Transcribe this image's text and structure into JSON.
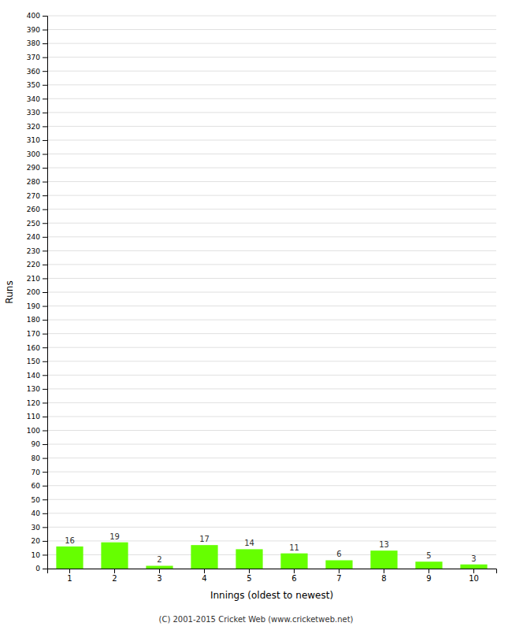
{
  "chart_data": {
    "type": "bar",
    "categories": [
      "1",
      "2",
      "3",
      "4",
      "5",
      "6",
      "7",
      "8",
      "9",
      "10"
    ],
    "values": [
      16,
      19,
      2,
      17,
      14,
      11,
      6,
      13,
      5,
      3
    ],
    "color": "#66ff00",
    "xlabel": "Innings (oldest to newest)",
    "ylabel": "Runs",
    "annotations": [
      "(C) 2001-2015 Cricket Web (www.cricketweb.net)"
    ],
    "ylim": [
      0,
      400
    ],
    "yticks": [
      0,
      10,
      20,
      30,
      40,
      50,
      60,
      70,
      80,
      90,
      100,
      110,
      120,
      130,
      140,
      150,
      160,
      170,
      180,
      190,
      200,
      210,
      220,
      230,
      240,
      250,
      260,
      270,
      280,
      290,
      300,
      310,
      320,
      330,
      340,
      350,
      360,
      370,
      380,
      390,
      400
    ],
    "grid": true,
    "data_labels": true
  }
}
